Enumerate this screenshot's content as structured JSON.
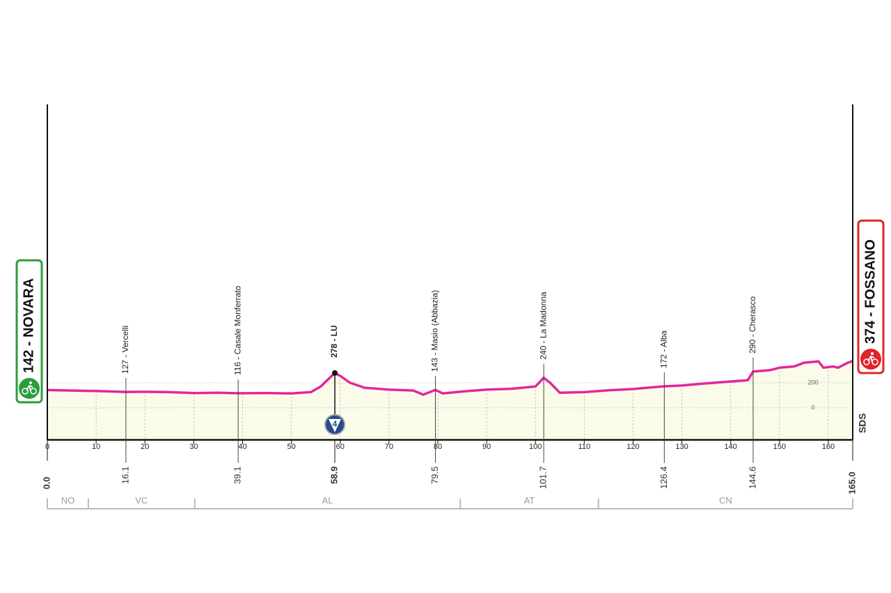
{
  "chart_data": {
    "type": "area",
    "color": "#e0289a",
    "fill": "#fbfbea",
    "xlim": [
      0,
      165
    ],
    "ylim": [
      -256,
      2422
    ],
    "xticks": [
      0,
      10,
      20,
      30,
      40,
      50,
      60,
      70,
      80,
      90,
      100,
      110,
      120,
      130,
      140,
      150,
      160
    ],
    "yticks": [
      0,
      200
    ],
    "grid": true,
    "x": [
      0,
      5,
      10,
      16.1,
      20,
      25,
      30,
      35,
      39.1,
      45,
      50,
      54,
      56,
      58.9,
      60,
      62,
      65,
      70,
      75,
      77,
      79.5,
      81,
      85,
      90,
      95,
      100,
      101.7,
      103,
      105,
      110,
      115,
      120,
      126.4,
      130,
      135,
      140,
      143.5,
      144.6,
      148,
      150,
      153,
      155,
      158,
      159,
      161,
      162,
      164,
      165
    ],
    "values": [
      142,
      138,
      134,
      127,
      128,
      125,
      118,
      120,
      116,
      118,
      115,
      125,
      170,
      278,
      255,
      200,
      160,
      145,
      138,
      105,
      143,
      115,
      130,
      145,
      152,
      170,
      240,
      200,
      120,
      125,
      140,
      150,
      172,
      178,
      195,
      210,
      220,
      290,
      300,
      320,
      330,
      360,
      370,
      320,
      330,
      320,
      360,
      374
    ],
    "start": {
      "label": "142 - NOVARA",
      "km": {
        "value": 0,
        "label": "0.0"
      },
      "color": "#2a9d3a"
    },
    "finish": {
      "label": "374 - FOSSANO",
      "km": {
        "value": 165,
        "label": "165.0"
      },
      "color": "#e0242a"
    },
    "waypoints": [
      {
        "km": 16.1,
        "label": "127 - Vercelli"
      },
      {
        "km": 39.1,
        "label": "116 - Casale Monferrato"
      },
      {
        "km": 58.9,
        "label": "278 - LU",
        "climb": "4"
      },
      {
        "km": 79.5,
        "label": "143 - Masio (Abbazia)"
      },
      {
        "km": 101.7,
        "label": "240 - La Madonna"
      },
      {
        "km": 126.4,
        "label": "172 - Alba"
      },
      {
        "km": 144.6,
        "label": "290 - Cherasco"
      }
    ],
    "regions": [
      {
        "name": "NO",
        "from": 0,
        "to": 8.4
      },
      {
        "name": "VC",
        "from": 8.4,
        "to": 30.2
      },
      {
        "name": "AL",
        "from": 30.2,
        "to": 84.6
      },
      {
        "name": "AT",
        "from": 84.6,
        "to": 112.9
      },
      {
        "name": "CN",
        "from": 112.9,
        "to": 165
      }
    ],
    "logo": "SDS"
  }
}
